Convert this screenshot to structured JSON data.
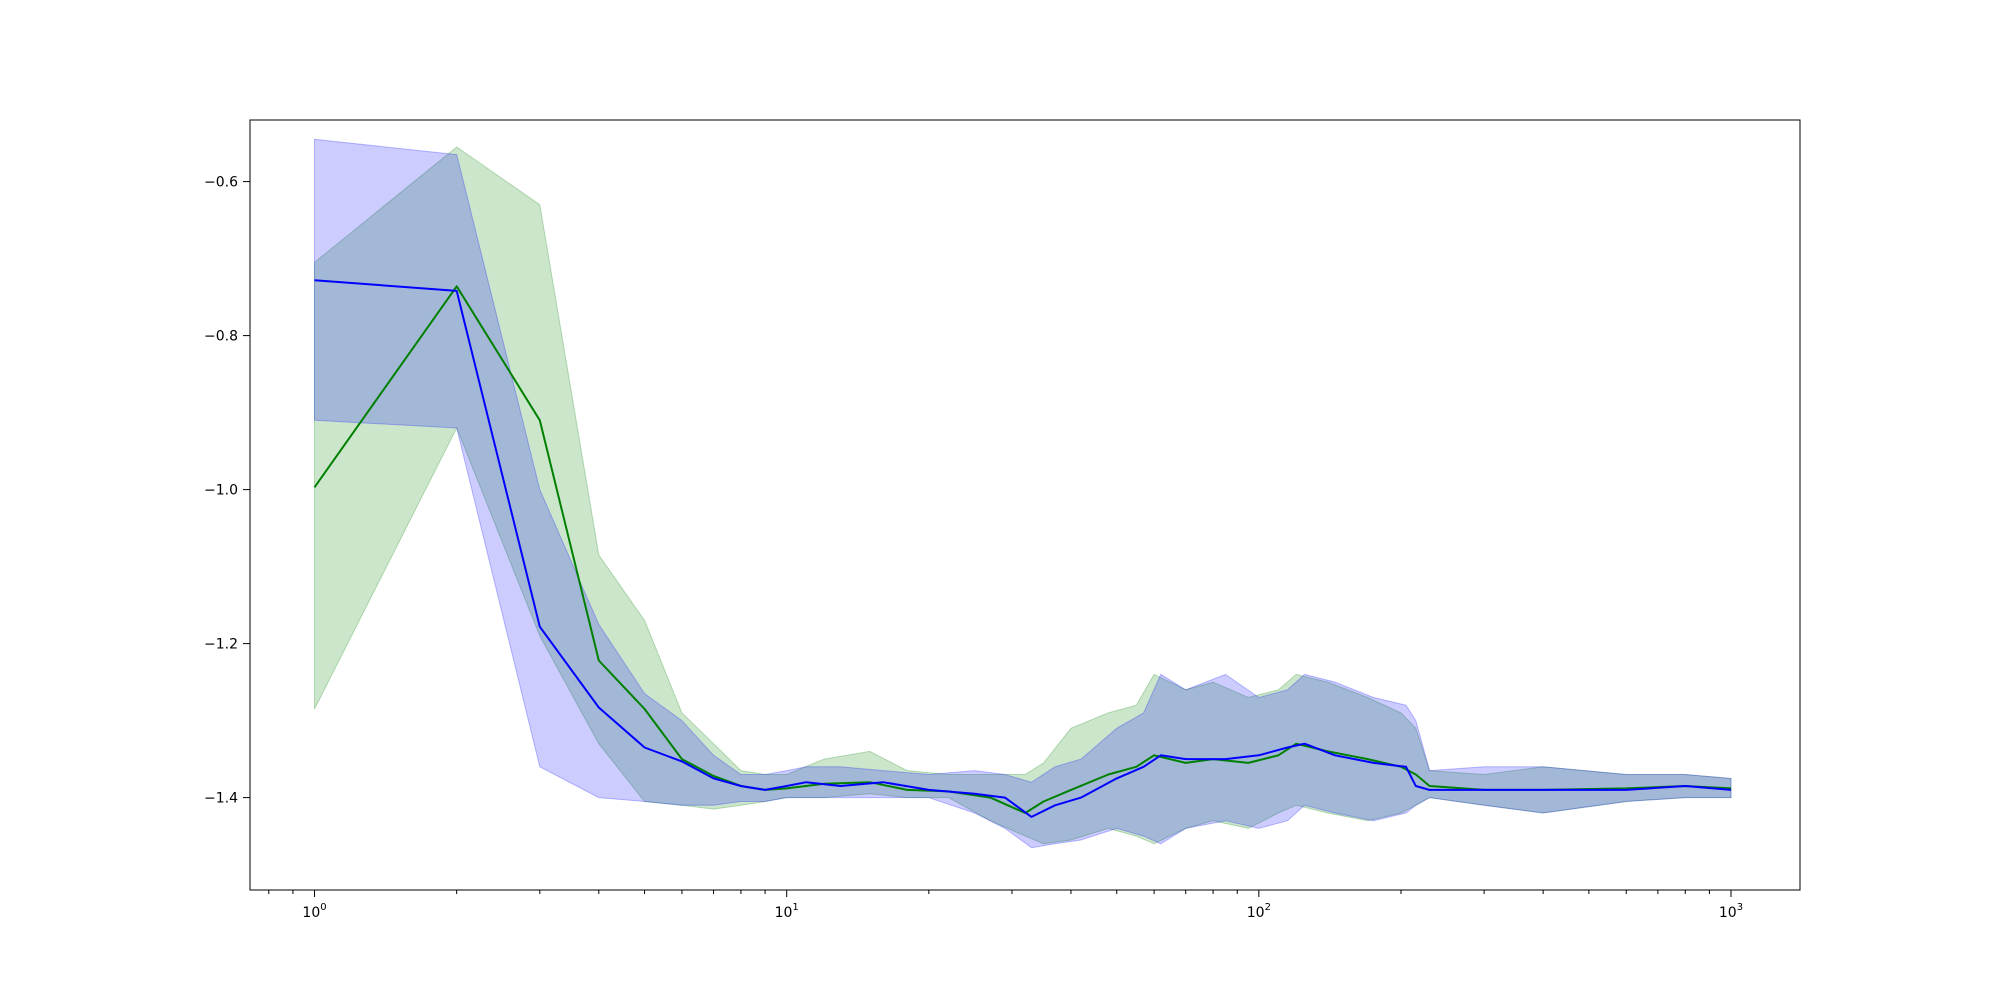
{
  "chart_data": {
    "type": "line",
    "title": "",
    "xlabel": "",
    "ylabel": "",
    "xscale": "log",
    "xlim": [
      0.73,
      1400
    ],
    "ylim": [
      -1.52,
      -0.52
    ],
    "grid": false,
    "xticks": [
      {
        "value": 1,
        "base": "10",
        "exp": "0"
      },
      {
        "value": 10,
        "base": "10",
        "exp": "1"
      },
      {
        "value": 100,
        "base": "10",
        "exp": "2"
      },
      {
        "value": 1000,
        "base": "10",
        "exp": "3"
      }
    ],
    "yticks": [
      {
        "value": -0.6,
        "label": "−0.6"
      },
      {
        "value": -0.8,
        "label": "−0.8"
      },
      {
        "value": -1.0,
        "label": "−1.0"
      },
      {
        "value": -1.2,
        "label": "−1.2"
      },
      {
        "value": -1.4,
        "label": "−1.4"
      }
    ],
    "series": [
      {
        "color": "#008000",
        "band_color": "#008000",
        "band_opacity": 0.2,
        "x": [
          1,
          2,
          3,
          4,
          5,
          6,
          7,
          8,
          9,
          10,
          12,
          15,
          18,
          22,
          27,
          32,
          35,
          40,
          48,
          55,
          60,
          70,
          80,
          95,
          110,
          120,
          140,
          170,
          200,
          215,
          230,
          300,
          400,
          600,
          800,
          1000
        ],
        "y": [
          -0.997,
          -0.736,
          -0.91,
          -1.222,
          -1.285,
          -1.35,
          -1.372,
          -1.385,
          -1.39,
          -1.388,
          -1.382,
          -1.38,
          -1.39,
          -1.392,
          -1.4,
          -1.42,
          -1.405,
          -1.39,
          -1.37,
          -1.36,
          -1.345,
          -1.355,
          -1.35,
          -1.355,
          -1.345,
          -1.33,
          -1.34,
          -1.35,
          -1.36,
          -1.37,
          -1.385,
          -1.39,
          -1.39,
          -1.388,
          -1.385,
          -1.388
        ],
        "lower": [
          -1.285,
          -0.92,
          -1.19,
          -1.33,
          -1.405,
          -1.41,
          -1.415,
          -1.41,
          -1.405,
          -1.4,
          -1.4,
          -1.395,
          -1.4,
          -1.4,
          -1.43,
          -1.45,
          -1.46,
          -1.455,
          -1.44,
          -1.45,
          -1.46,
          -1.44,
          -1.43,
          -1.44,
          -1.42,
          -1.41,
          -1.42,
          -1.43,
          -1.42,
          -1.41,
          -1.4,
          -1.41,
          -1.42,
          -1.405,
          -1.4,
          -1.4
        ],
        "upper": [
          -0.705,
          -0.555,
          -0.63,
          -1.085,
          -1.17,
          -1.29,
          -1.33,
          -1.365,
          -1.37,
          -1.37,
          -1.35,
          -1.34,
          -1.365,
          -1.37,
          -1.37,
          -1.37,
          -1.355,
          -1.31,
          -1.29,
          -1.28,
          -1.24,
          -1.26,
          -1.25,
          -1.27,
          -1.26,
          -1.24,
          -1.25,
          -1.27,
          -1.29,
          -1.31,
          -1.365,
          -1.37,
          -1.36,
          -1.37,
          -1.37,
          -1.375
        ]
      },
      {
        "color": "#0000ff",
        "band_color": "#0000ff",
        "band_opacity": 0.2,
        "x": [
          1,
          2,
          3,
          4,
          5,
          6,
          7,
          8,
          9,
          10,
          11,
          13,
          16,
          20,
          25,
          29,
          33,
          37,
          42,
          50,
          57,
          62,
          70,
          85,
          100,
          115,
          125,
          145,
          175,
          205,
          215,
          230,
          300,
          400,
          600,
          800,
          1000
        ],
        "y": [
          -0.728,
          -0.742,
          -1.178,
          -1.283,
          -1.335,
          -1.353,
          -1.375,
          -1.385,
          -1.39,
          -1.385,
          -1.38,
          -1.385,
          -1.38,
          -1.39,
          -1.395,
          -1.4,
          -1.425,
          -1.41,
          -1.4,
          -1.375,
          -1.36,
          -1.345,
          -1.35,
          -1.35,
          -1.345,
          -1.335,
          -1.33,
          -1.345,
          -1.355,
          -1.36,
          -1.385,
          -1.39,
          -1.39,
          -1.39,
          -1.39,
          -1.385,
          -1.39
        ],
        "lower": [
          -0.91,
          -0.92,
          -1.36,
          -1.4,
          -1.405,
          -1.41,
          -1.41,
          -1.405,
          -1.405,
          -1.4,
          -1.4,
          -1.4,
          -1.4,
          -1.4,
          -1.42,
          -1.44,
          -1.465,
          -1.46,
          -1.455,
          -1.44,
          -1.45,
          -1.46,
          -1.44,
          -1.43,
          -1.44,
          -1.43,
          -1.41,
          -1.42,
          -1.43,
          -1.42,
          -1.41,
          -1.4,
          -1.41,
          -1.42,
          -1.405,
          -1.4,
          -1.4
        ],
        "upper": [
          -0.545,
          -0.565,
          -1.0,
          -1.175,
          -1.265,
          -1.3,
          -1.345,
          -1.37,
          -1.37,
          -1.365,
          -1.36,
          -1.36,
          -1.365,
          -1.37,
          -1.365,
          -1.37,
          -1.38,
          -1.36,
          -1.35,
          -1.31,
          -1.29,
          -1.24,
          -1.26,
          -1.24,
          -1.27,
          -1.26,
          -1.24,
          -1.25,
          -1.27,
          -1.28,
          -1.3,
          -1.365,
          -1.36,
          -1.36,
          -1.37,
          -1.37,
          -1.375
        ]
      }
    ]
  }
}
